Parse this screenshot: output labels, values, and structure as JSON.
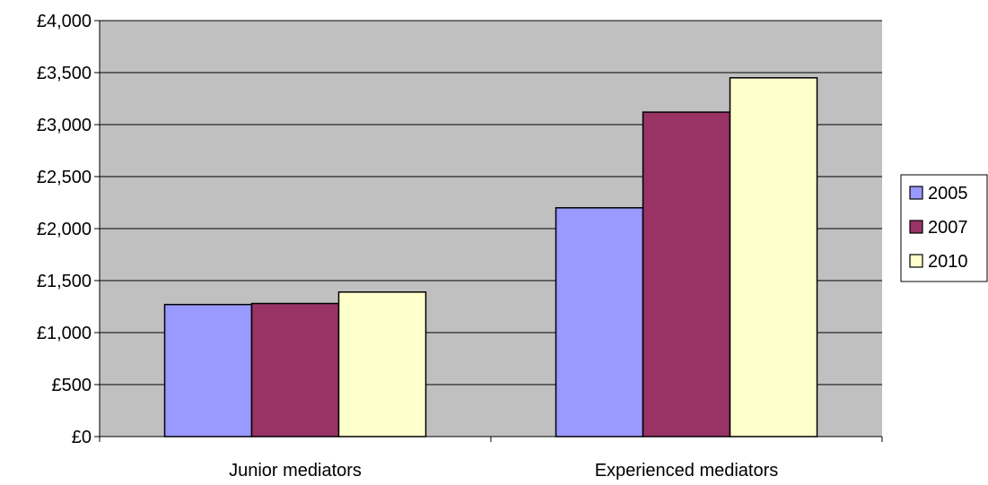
{
  "chart_data": {
    "type": "bar",
    "title": "",
    "xlabel": "",
    "ylabel": "",
    "categories": [
      "Junior mediators",
      "Experienced mediators"
    ],
    "series": [
      {
        "name": "2005",
        "values": [
          1270,
          2200
        ],
        "color": "#9999ff"
      },
      {
        "name": "2007",
        "values": [
          1280,
          3120
        ],
        "color": "#993366"
      },
      {
        "name": "2010",
        "values": [
          1390,
          3450
        ],
        "color": "#ffffcc"
      }
    ],
    "ylim": [
      0,
      4000
    ],
    "y_ticks": [
      0,
      500,
      1000,
      1500,
      2000,
      2500,
      3000,
      3500,
      4000
    ],
    "y_tick_labels": [
      "£0",
      "£500",
      "£1,000",
      "£1,500",
      "£2,000",
      "£2,500",
      "£3,000",
      "£3,500",
      "£4,000"
    ],
    "plot_background": "#c0c0c0",
    "gridlines": true,
    "legend_position": "right"
  }
}
